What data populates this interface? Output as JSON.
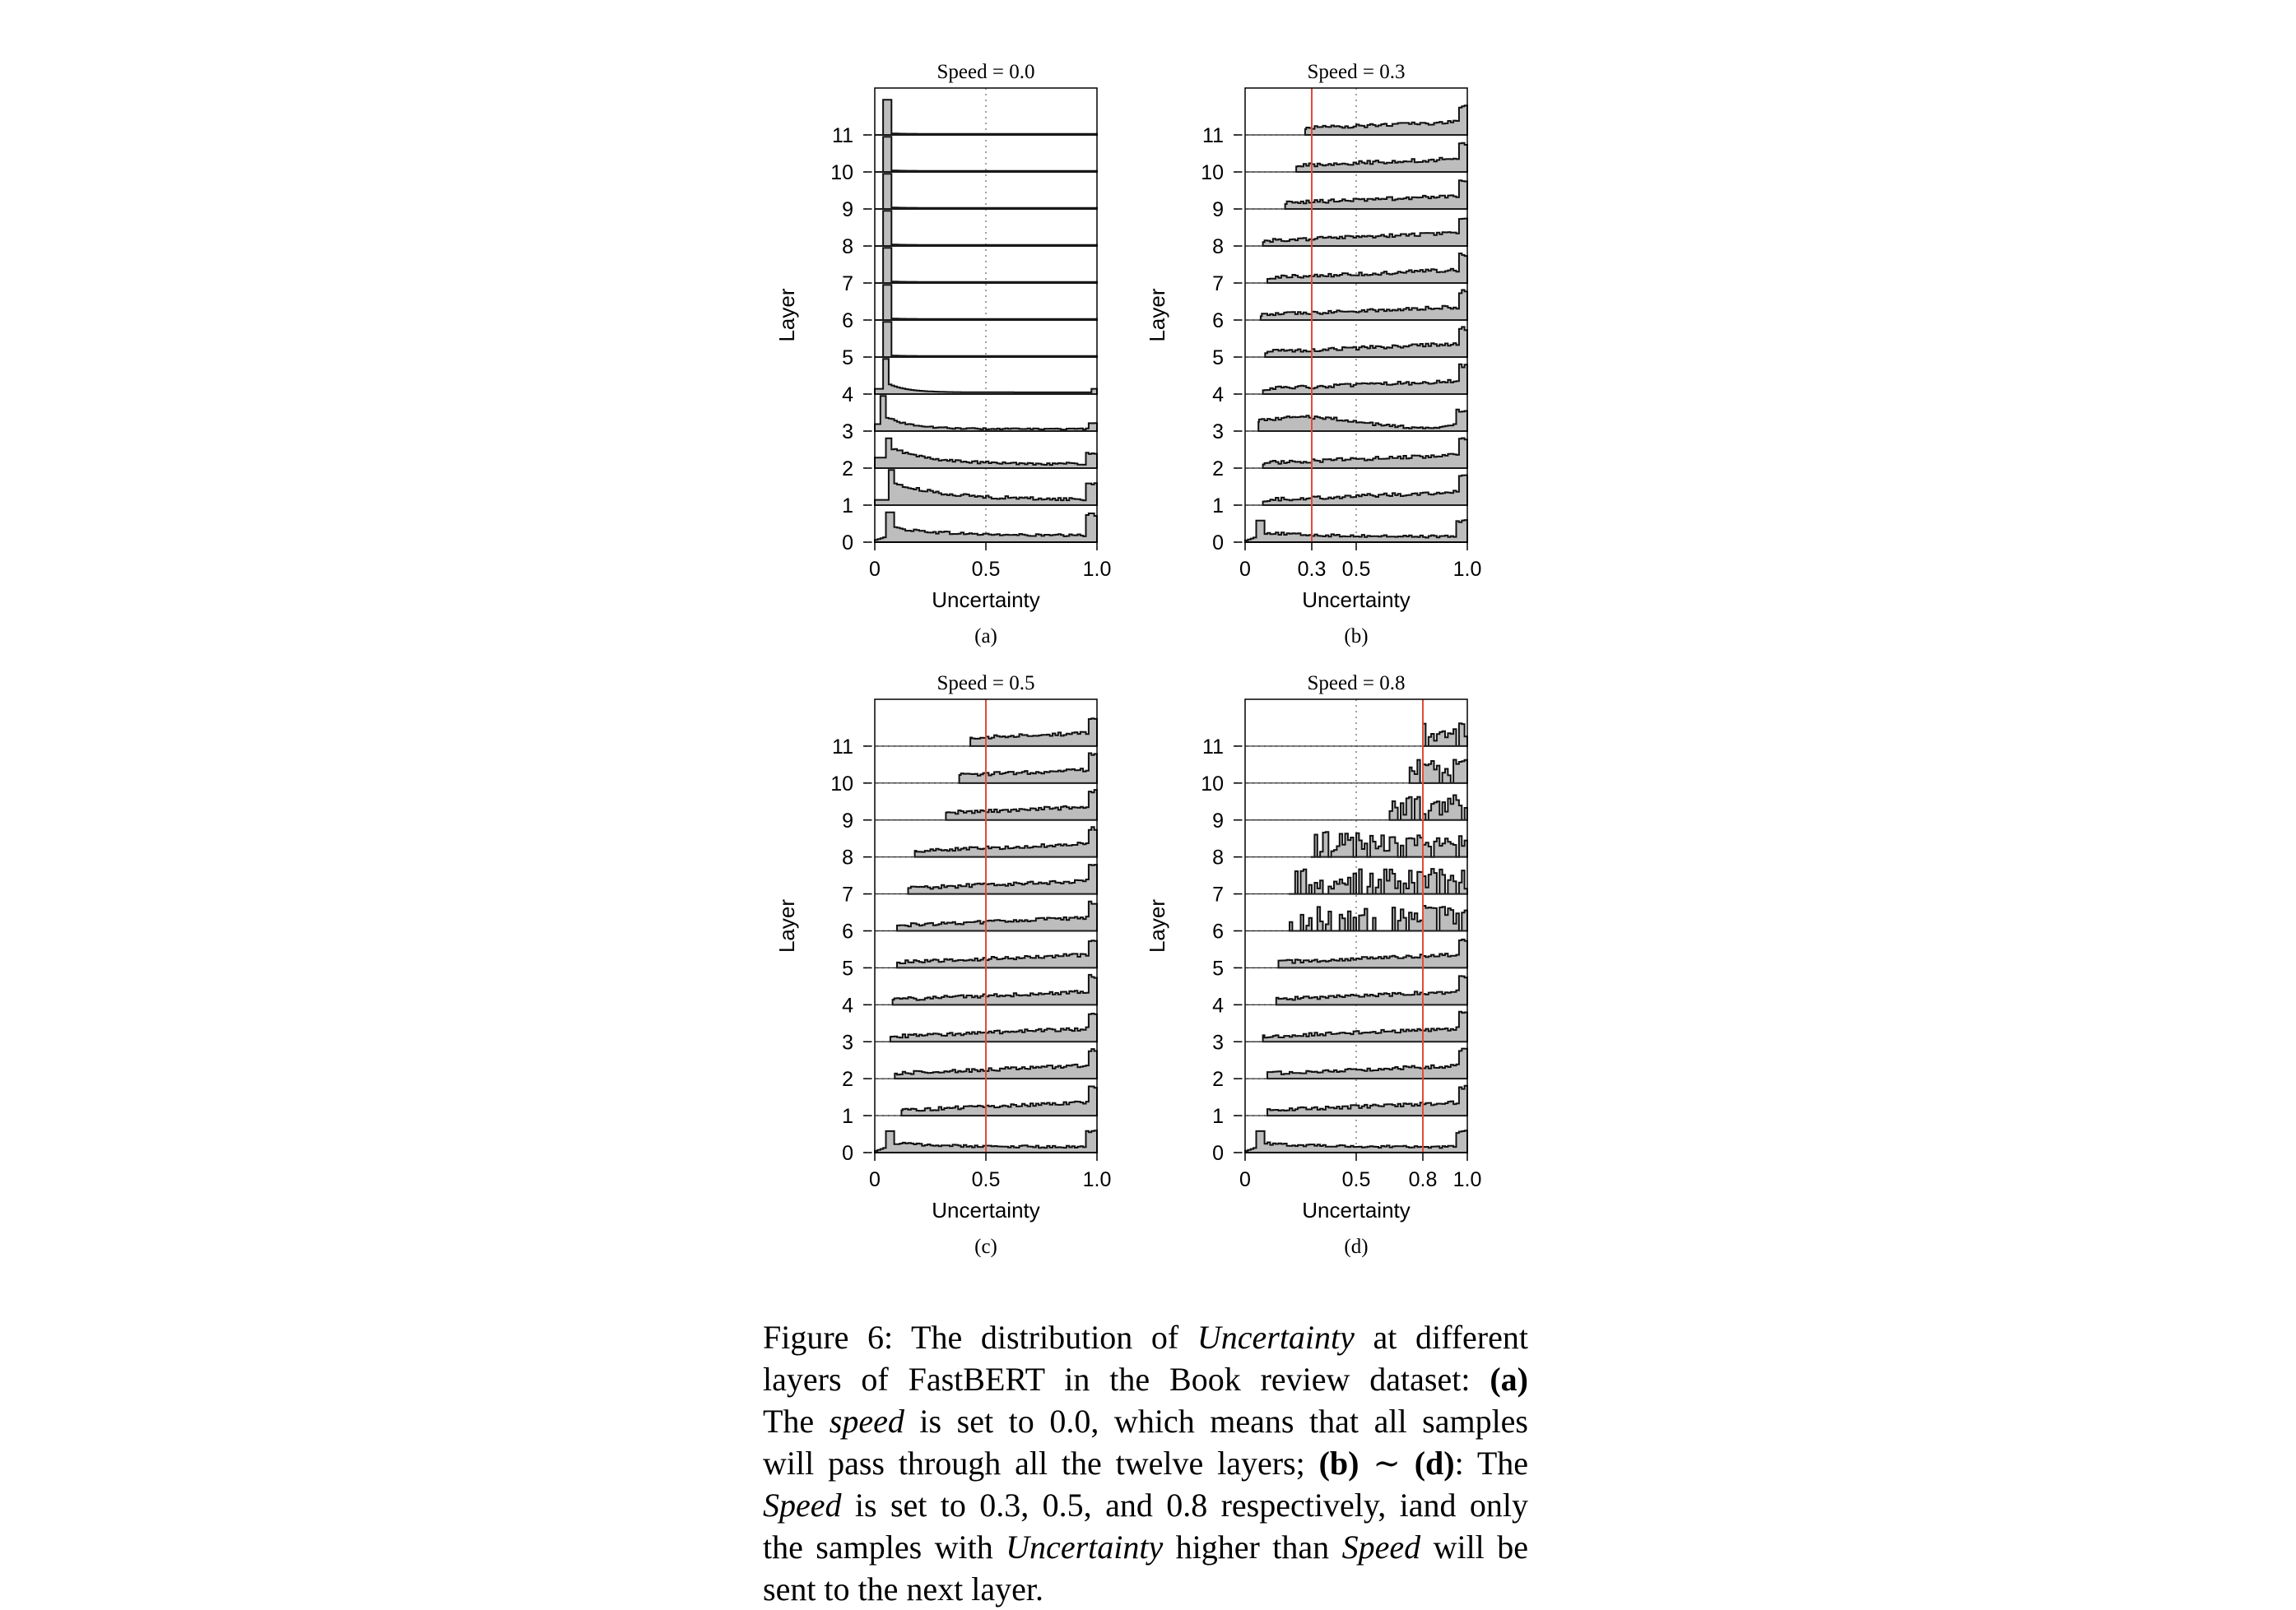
{
  "chart_data": [
    {
      "type": "histogram-ridgeline",
      "panel": "(a)",
      "title": "Speed = 0.0",
      "xlabel": "Uncertainty",
      "ylabel": "Layer",
      "xlim": [
        0,
        1
      ],
      "xticks": [
        "0",
        "0.5",
        "1.0"
      ],
      "yticks": [
        "0",
        "1",
        "2",
        "3",
        "4",
        "5",
        "6",
        "7",
        "8",
        "9",
        "10",
        "11"
      ],
      "speed": 0.0,
      "threshold_line": false,
      "grid": "dotted vertical at 0.5",
      "layers": [
        {
          "layer": 0,
          "min_uncertainty": 0.0,
          "shape": "peak 0.08, low plateau, rise at 1.0"
        },
        {
          "layer": 1,
          "min_uncertainty": 0.0,
          "shape": "peak 0.1, decaying, rise at 1.0"
        },
        {
          "layer": 2,
          "min_uncertainty": 0.0,
          "shape": "peak 0.06, decaying, rise at 1.0"
        },
        {
          "layer": 3,
          "min_uncertainty": 0.0,
          "shape": "sharp peak near 0.04"
        },
        {
          "layer": 4,
          "min_uncertainty": 0.0,
          "shape": "sharp peak near 0.04"
        },
        {
          "layer": 5,
          "min_uncertainty": 0.0,
          "shape": "spike near 0.05"
        },
        {
          "layer": 6,
          "min_uncertainty": 0.0,
          "shape": "spike near 0.05"
        },
        {
          "layer": 7,
          "min_uncertainty": 0.0,
          "shape": "spike near 0.05"
        },
        {
          "layer": 8,
          "min_uncertainty": 0.0,
          "shape": "spike near 0.05"
        },
        {
          "layer": 9,
          "min_uncertainty": 0.0,
          "shape": "spike near 0.05"
        },
        {
          "layer": 10,
          "min_uncertainty": 0.0,
          "shape": "spike near 0.05"
        },
        {
          "layer": 11,
          "min_uncertainty": 0.0,
          "shape": "spike near 0.05"
        }
      ]
    },
    {
      "type": "histogram-ridgeline",
      "panel": "(b)",
      "title": "Speed = 0.3",
      "xlabel": "Uncertainty",
      "ylabel": "Layer",
      "xlim": [
        0,
        1
      ],
      "xticks": [
        "0",
        "0.3",
        "0.5",
        "1.0"
      ],
      "yticks": [
        "0",
        "1",
        "2",
        "3",
        "4",
        "5",
        "6",
        "7",
        "8",
        "9",
        "10",
        "11"
      ],
      "speed": 0.3,
      "threshold_line": true,
      "grid": "dotted vertical at 0.5",
      "layers": [
        {
          "layer": 0,
          "min_uncertainty": 0.0
        },
        {
          "layer": 1,
          "min_uncertainty": 0.08
        },
        {
          "layer": 2,
          "min_uncertainty": 0.08
        },
        {
          "layer": 3,
          "min_uncertainty": 0.06
        },
        {
          "layer": 4,
          "min_uncertainty": 0.08
        },
        {
          "layer": 5,
          "min_uncertainty": 0.09
        },
        {
          "layer": 6,
          "min_uncertainty": 0.07
        },
        {
          "layer": 7,
          "min_uncertainty": 0.1
        },
        {
          "layer": 8,
          "min_uncertainty": 0.08
        },
        {
          "layer": 9,
          "min_uncertainty": 0.18
        },
        {
          "layer": 10,
          "min_uncertainty": 0.23
        },
        {
          "layer": 11,
          "min_uncertainty": 0.27
        }
      ]
    },
    {
      "type": "histogram-ridgeline",
      "panel": "(c)",
      "title": "Speed = 0.5",
      "xlabel": "Uncertainty",
      "ylabel": "Layer",
      "xlim": [
        0,
        1
      ],
      "xticks": [
        "0",
        "0.5",
        "1.0"
      ],
      "yticks": [
        "0",
        "1",
        "2",
        "3",
        "4",
        "5",
        "6",
        "7",
        "8",
        "9",
        "10",
        "11"
      ],
      "speed": 0.5,
      "threshold_line": true,
      "grid": "dotted vertical at 0.5",
      "layers": [
        {
          "layer": 0,
          "min_uncertainty": 0.0
        },
        {
          "layer": 1,
          "min_uncertainty": 0.12
        },
        {
          "layer": 2,
          "min_uncertainty": 0.09
        },
        {
          "layer": 3,
          "min_uncertainty": 0.07
        },
        {
          "layer": 4,
          "min_uncertainty": 0.08
        },
        {
          "layer": 5,
          "min_uncertainty": 0.1
        },
        {
          "layer": 6,
          "min_uncertainty": 0.1
        },
        {
          "layer": 7,
          "min_uncertainty": 0.15
        },
        {
          "layer": 8,
          "min_uncertainty": 0.18
        },
        {
          "layer": 9,
          "min_uncertainty": 0.32
        },
        {
          "layer": 10,
          "min_uncertainty": 0.38
        },
        {
          "layer": 11,
          "min_uncertainty": 0.43
        }
      ]
    },
    {
      "type": "histogram-ridgeline",
      "panel": "(d)",
      "title": "Speed = 0.8",
      "xlabel": "Uncertainty",
      "ylabel": "Layer",
      "xlim": [
        0,
        1
      ],
      "xticks": [
        "0",
        "0.5",
        "0.8",
        "1.0"
      ],
      "yticks": [
        "0",
        "1",
        "2",
        "3",
        "4",
        "5",
        "6",
        "7",
        "8",
        "9",
        "10",
        "11"
      ],
      "speed": 0.8,
      "threshold_line": true,
      "grid": "dotted vertical at 0.5",
      "layers": [
        {
          "layer": 0,
          "min_uncertainty": 0.0
        },
        {
          "layer": 1,
          "min_uncertainty": 0.1
        },
        {
          "layer": 2,
          "min_uncertainty": 0.1
        },
        {
          "layer": 3,
          "min_uncertainty": 0.08
        },
        {
          "layer": 4,
          "min_uncertainty": 0.14
        },
        {
          "layer": 5,
          "min_uncertainty": 0.15
        },
        {
          "layer": 6,
          "min_uncertainty": 0.2
        },
        {
          "layer": 7,
          "min_uncertainty": 0.2
        },
        {
          "layer": 8,
          "min_uncertainty": 0.3
        },
        {
          "layer": 9,
          "min_uncertainty": 0.65
        },
        {
          "layer": 10,
          "min_uncertainty": 0.74
        },
        {
          "layer": 11,
          "min_uncertainty": 0.8
        }
      ]
    }
  ],
  "caption": {
    "lines": [
      [
        {
          "t": "Figure 6:  The distribution of "
        },
        {
          "t": "Uncertainty",
          "s": "it"
        },
        {
          "t": " at different"
        }
      ],
      [
        {
          "t": "layers of FastBERT in the Book review dataset:  "
        },
        {
          "t": "(a)",
          "s": "bd"
        }
      ],
      [
        {
          "t": "The "
        },
        {
          "t": "speed",
          "s": "it"
        },
        {
          "t": " is set to 0.0, which means that all samples"
        }
      ],
      [
        {
          "t": "will pass through all the twelve layers; "
        },
        {
          "t": "(b)",
          "s": "bd"
        },
        {
          "t": " ∼ "
        },
        {
          "t": "(d)",
          "s": "bd"
        },
        {
          "t": ":  The"
        }
      ],
      [
        {
          "t": "Speed",
          "s": "it"
        },
        {
          "t": " is set to 0.3, 0.5, and 0.8 respectively, iand only"
        }
      ],
      [
        {
          "t": "the samples with "
        },
        {
          "t": "Uncertainty",
          "s": "it"
        },
        {
          "t": " higher than "
        },
        {
          "t": "Speed",
          "s": "it"
        },
        {
          "t": " will be"
        }
      ],
      [
        {
          "t": "sent to the next layer."
        }
      ]
    ]
  }
}
